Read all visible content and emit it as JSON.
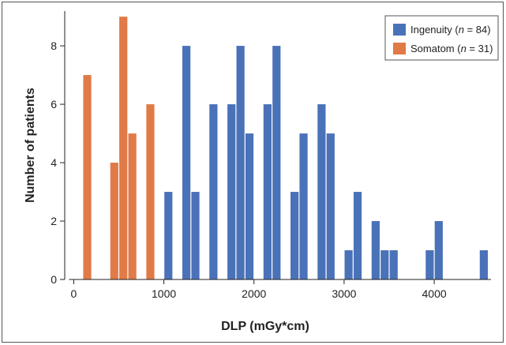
{
  "chart_data": {
    "type": "bar",
    "xlabel": "DLP (mGy*cm)",
    "ylabel": "Number of patients",
    "xlim": [
      -100,
      4700
    ],
    "ylim": [
      0,
      9.3
    ],
    "bin_width": 100,
    "x_ticks": [
      0,
      1000,
      2000,
      3000,
      4000
    ],
    "x_tick_labels": [
      "0",
      "1000",
      "2000",
      "3000",
      "4000"
    ],
    "y_ticks": [
      0,
      2,
      4,
      6,
      8
    ],
    "y_tick_labels": [
      "0",
      "2",
      "4",
      "6",
      "8"
    ],
    "grid": false,
    "legend_position": "top-right",
    "series": [
      {
        "name": "Somatom (n = 31)",
        "legend_prefix": "Somatom (",
        "legend_n": "n",
        "legend_suffix": " = 31)",
        "color": "#E07B47",
        "bins": [
          {
            "x": 100,
            "y": 7
          },
          {
            "x": 400,
            "y": 4
          },
          {
            "x": 500,
            "y": 9
          },
          {
            "x": 600,
            "y": 5
          },
          {
            "x": 800,
            "y": 6
          }
        ]
      },
      {
        "name": "Ingenuity (n = 84)",
        "legend_prefix": "Ingenuity (",
        "legend_n": "n",
        "legend_suffix": " = 84)",
        "color": "#4A72B8",
        "bins": [
          {
            "x": 1000,
            "y": 3
          },
          {
            "x": 1200,
            "y": 8
          },
          {
            "x": 1300,
            "y": 3
          },
          {
            "x": 1500,
            "y": 6
          },
          {
            "x": 1700,
            "y": 6
          },
          {
            "x": 1800,
            "y": 8
          },
          {
            "x": 1900,
            "y": 5
          },
          {
            "x": 2100,
            "y": 6
          },
          {
            "x": 2200,
            "y": 8
          },
          {
            "x": 2400,
            "y": 3
          },
          {
            "x": 2500,
            "y": 5
          },
          {
            "x": 2700,
            "y": 6
          },
          {
            "x": 2800,
            "y": 5
          },
          {
            "x": 3000,
            "y": 1
          },
          {
            "x": 3100,
            "y": 3
          },
          {
            "x": 3300,
            "y": 2
          },
          {
            "x": 3400,
            "y": 1
          },
          {
            "x": 3500,
            "y": 1
          },
          {
            "x": 3900,
            "y": 1
          },
          {
            "x": 4000,
            "y": 2
          },
          {
            "x": 4500,
            "y": 1
          }
        ]
      }
    ]
  }
}
